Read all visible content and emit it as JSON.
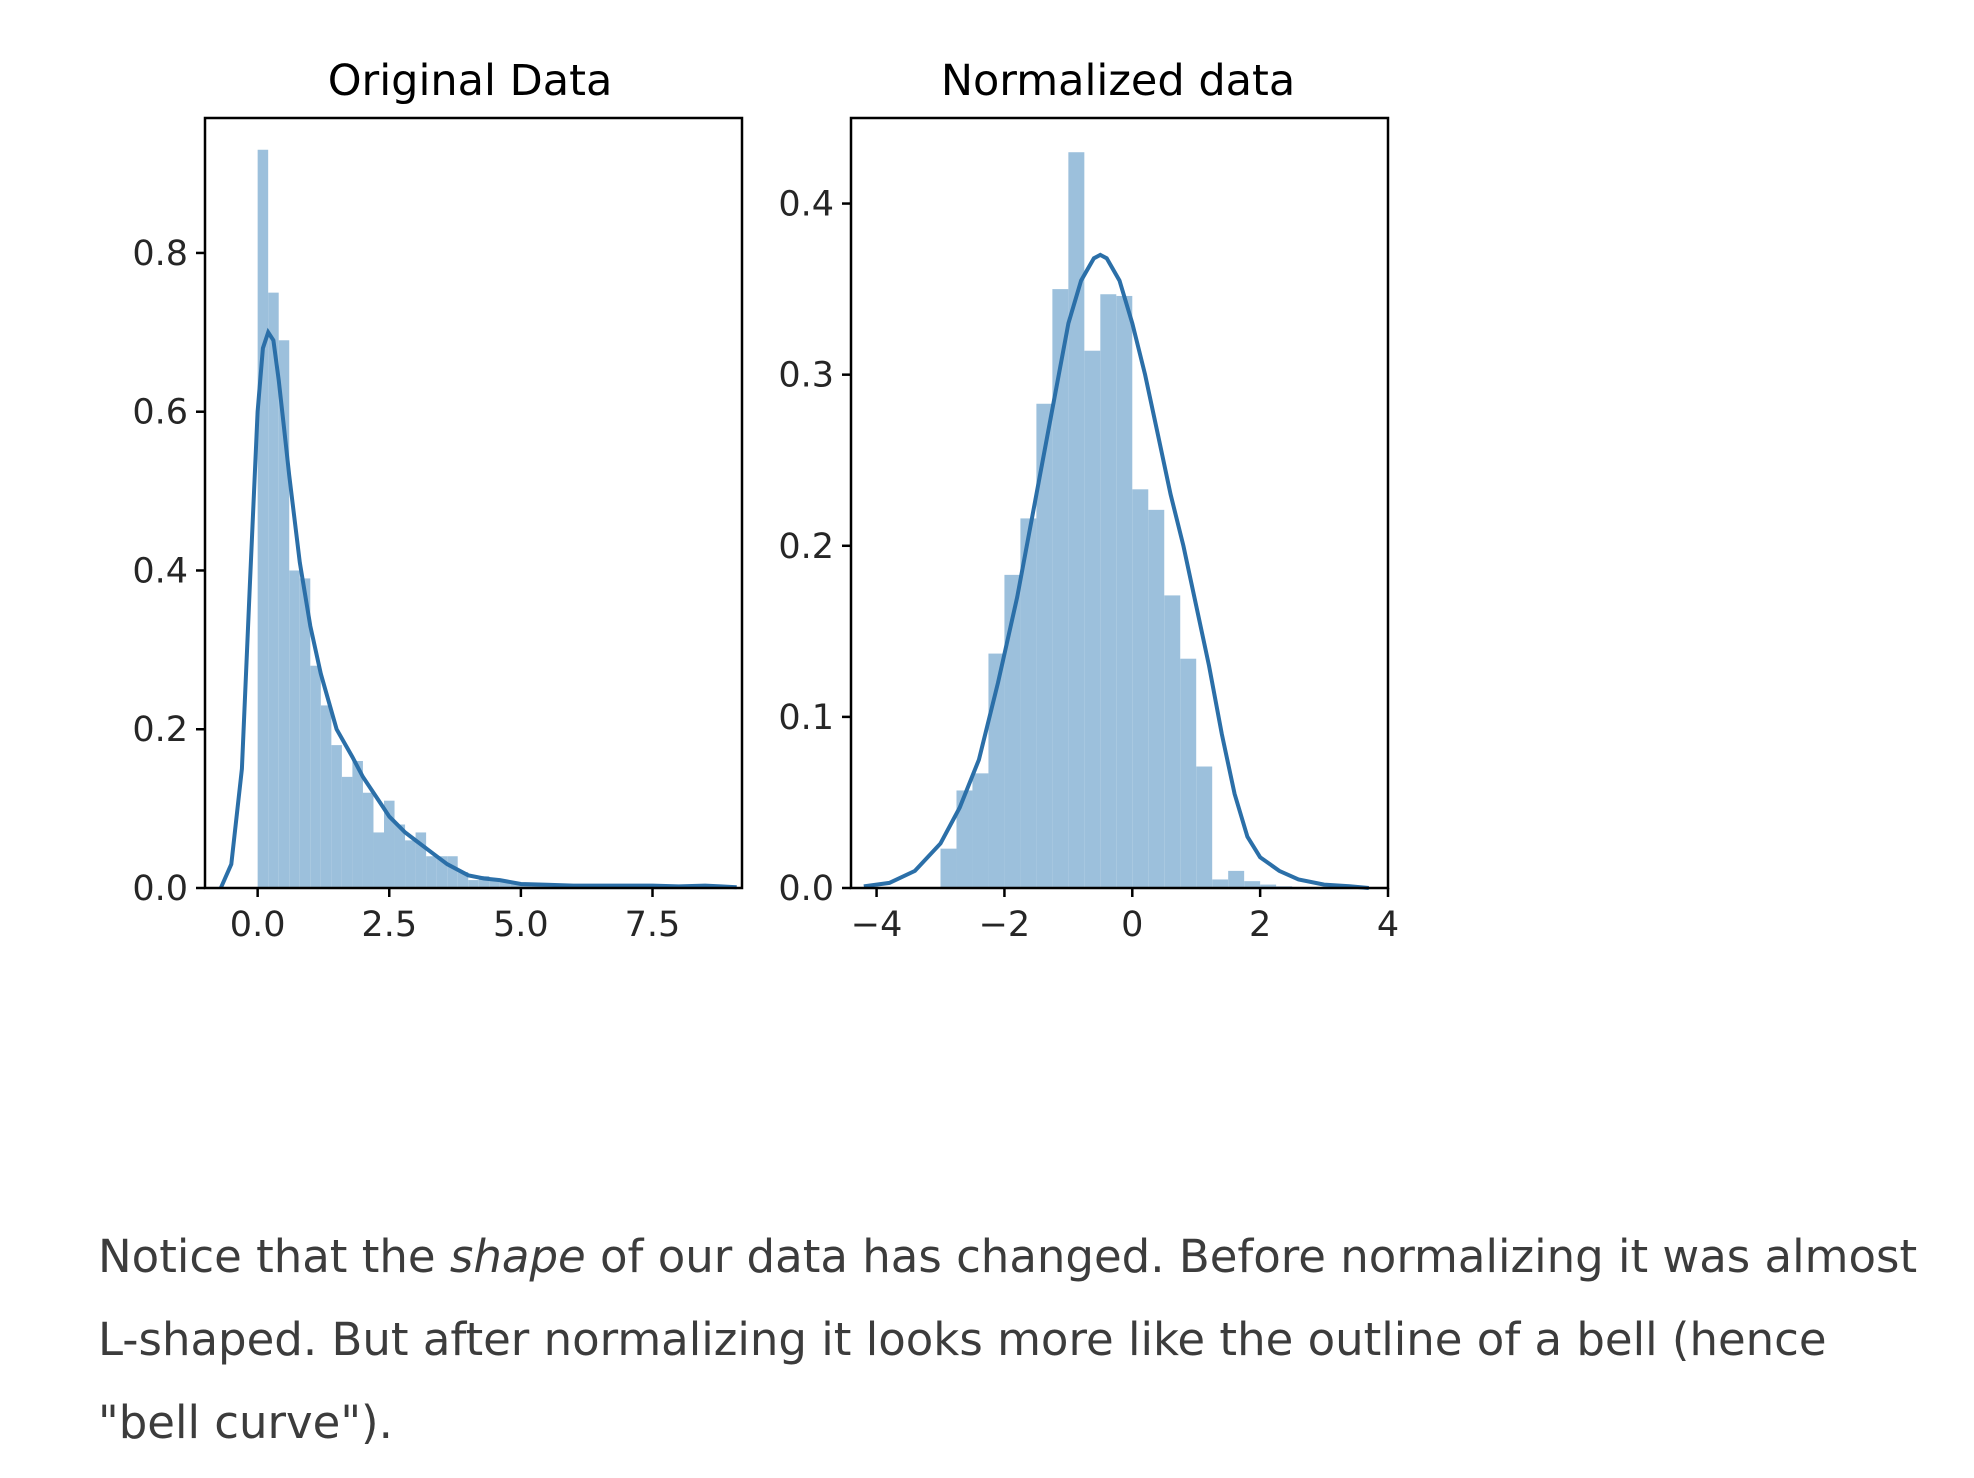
{
  "colors": {
    "bar": "#9cc0dc",
    "line": "#2b6fa8",
    "axis": "#000000",
    "text": "#262626"
  },
  "chart_data": [
    {
      "type": "bar",
      "title": "Original Data",
      "xlabel": "",
      "ylabel": "",
      "xlim": [
        -1.0,
        9.2
      ],
      "ylim": [
        0,
        0.97
      ],
      "xticks": [
        "0.0",
        "2.5",
        "5.0",
        "7.5"
      ],
      "xtick_values": [
        0,
        2.5,
        5.0,
        7.5
      ],
      "yticks": [
        "0.0",
        "0.2",
        "0.4",
        "0.6",
        "0.8"
      ],
      "ytick_values": [
        0,
        0.2,
        0.4,
        0.6,
        0.8
      ],
      "bin_edges": [
        0.0,
        0.2,
        0.4,
        0.6,
        0.8,
        1.0,
        1.2,
        1.4,
        1.6,
        1.8,
        2.0,
        2.2,
        2.4,
        2.6,
        2.8,
        3.0,
        3.2,
        3.4,
        3.6,
        3.8,
        4.0,
        4.2,
        4.4,
        4.6,
        4.8,
        5.0,
        5.2,
        5.4,
        5.6,
        5.8,
        6.0,
        6.2,
        6.4,
        6.6,
        6.8,
        7.0,
        7.2,
        7.4,
        7.6,
        7.8,
        8.0,
        8.2,
        8.4,
        8.6,
        8.8,
        9.0
      ],
      "values": [
        0.93,
        0.75,
        0.69,
        0.4,
        0.39,
        0.28,
        0.23,
        0.18,
        0.14,
        0.16,
        0.12,
        0.07,
        0.11,
        0.08,
        0.06,
        0.07,
        0.04,
        0.04,
        0.04,
        0.02,
        0.01,
        0.015,
        0.01,
        0.008,
        0.006,
        0.005,
        0.005,
        0.004,
        0.004,
        0.003,
        0.003,
        0.003,
        0.004,
        0.003,
        0.003,
        0.003,
        0.002,
        0.002,
        0.002,
        0.002,
        0.003,
        0.003,
        0.003,
        0.003,
        0.002
      ],
      "kde": {
        "x": [
          -0.7,
          -0.5,
          -0.3,
          -0.15,
          0.0,
          0.1,
          0.2,
          0.3,
          0.4,
          0.5,
          0.6,
          0.8,
          1.0,
          1.2,
          1.5,
          1.8,
          2.0,
          2.2,
          2.5,
          2.8,
          3.0,
          3.3,
          3.6,
          4.0,
          4.3,
          4.6,
          5.0,
          5.5,
          6.0,
          6.5,
          7.0,
          7.5,
          8.0,
          8.5,
          8.8,
          9.1
        ],
        "y": [
          0.0,
          0.03,
          0.15,
          0.38,
          0.6,
          0.68,
          0.7,
          0.69,
          0.64,
          0.58,
          0.52,
          0.41,
          0.33,
          0.27,
          0.2,
          0.165,
          0.14,
          0.12,
          0.09,
          0.07,
          0.06,
          0.045,
          0.03,
          0.016,
          0.012,
          0.01,
          0.005,
          0.004,
          0.003,
          0.003,
          0.003,
          0.003,
          0.002,
          0.003,
          0.002,
          0.001
        ]
      }
    },
    {
      "type": "bar",
      "title": "Normalized data",
      "xlabel": "",
      "ylabel": "",
      "xlim": [
        -4.4,
        4.0
      ],
      "ylim": [
        0,
        0.45
      ],
      "xticks": [
        "−4",
        "−2",
        "0",
        "2",
        "4"
      ],
      "xtick_values": [
        -4,
        -2,
        0,
        2,
        4
      ],
      "yticks": [
        "0.0",
        "0.1",
        "0.2",
        "0.3",
        "0.4"
      ],
      "ytick_values": [
        0,
        0.1,
        0.2,
        0.3,
        0.4
      ],
      "bin_edges": [
        -3.0,
        -2.75,
        -2.5,
        -2.25,
        -2.0,
        -1.75,
        -1.5,
        -1.25,
        -1.0,
        -0.75,
        -0.5,
        -0.25,
        0.0,
        0.25,
        0.5,
        0.75,
        1.0,
        1.25,
        1.5,
        1.75,
        2.0,
        2.25,
        2.5
      ],
      "values": [
        0.023,
        0.057,
        0.067,
        0.137,
        0.183,
        0.216,
        0.283,
        0.35,
        0.43,
        0.314,
        0.347,
        0.346,
        0.233,
        0.221,
        0.171,
        0.134,
        0.071,
        0.005,
        0.01,
        0.004,
        0.002,
        0.001
      ],
      "kde": {
        "x": [
          -4.2,
          -3.8,
          -3.4,
          -3.0,
          -2.7,
          -2.4,
          -2.1,
          -1.8,
          -1.5,
          -1.2,
          -1.0,
          -0.8,
          -0.6,
          -0.5,
          -0.4,
          -0.2,
          0.0,
          0.2,
          0.4,
          0.6,
          0.8,
          1.0,
          1.2,
          1.4,
          1.6,
          1.8,
          2.0,
          2.3,
          2.6,
          3.0,
          3.4,
          3.7
        ],
        "y": [
          0.001,
          0.003,
          0.01,
          0.026,
          0.047,
          0.075,
          0.12,
          0.17,
          0.23,
          0.29,
          0.33,
          0.355,
          0.368,
          0.37,
          0.368,
          0.355,
          0.33,
          0.3,
          0.265,
          0.23,
          0.2,
          0.165,
          0.13,
          0.09,
          0.055,
          0.03,
          0.018,
          0.01,
          0.005,
          0.002,
          0.001,
          0.0
        ]
      }
    }
  ],
  "caption": {
    "pre": "Notice that the ",
    "em": "shape",
    "post": " of our data has changed. Before normalizing it was almost L-shaped. But after normalizing it looks more like the outline of a bell (hence \"bell curve\")."
  }
}
